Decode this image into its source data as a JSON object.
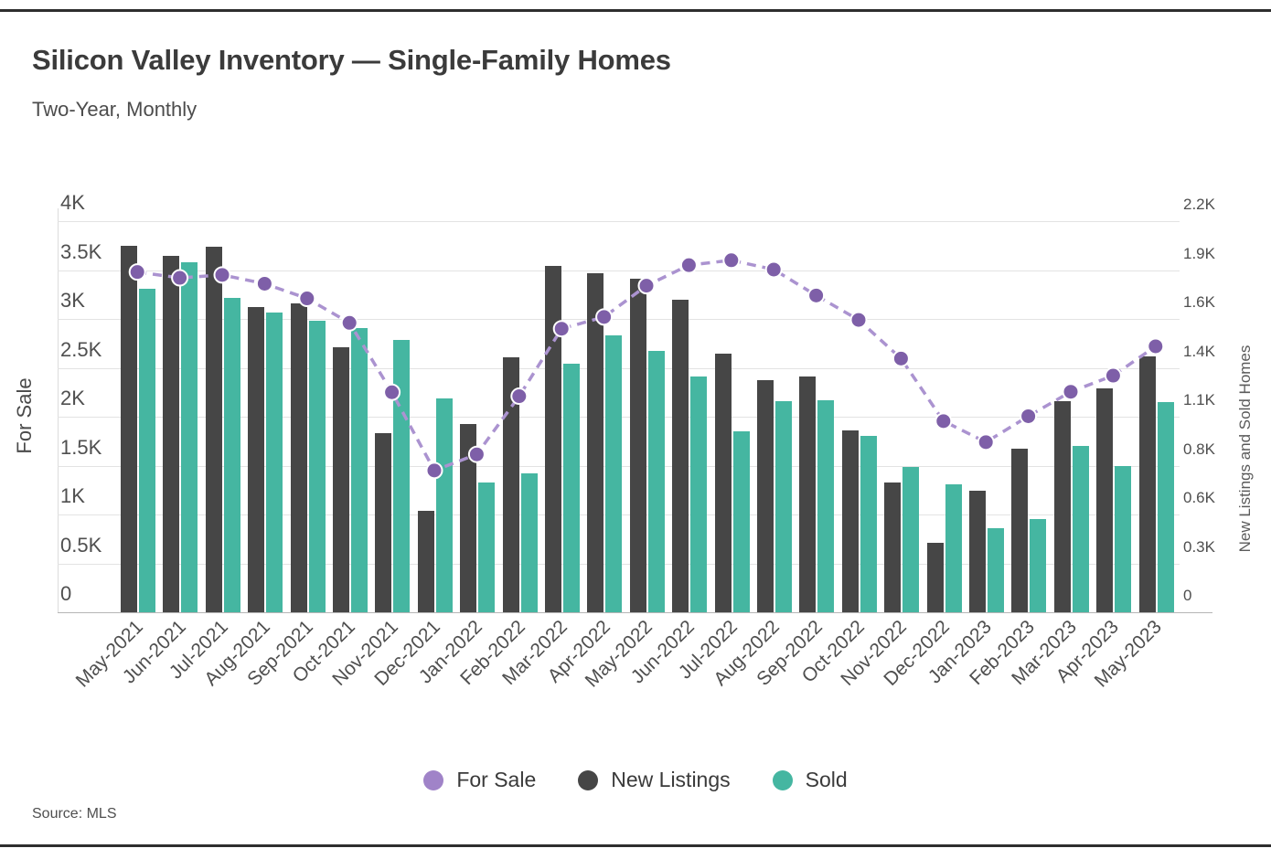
{
  "header": {
    "title": "Silicon Valley Inventory — Single-Family Homes",
    "subtitle": "Two-Year, Monthly"
  },
  "footer": {
    "source": "Source: MLS"
  },
  "colors": {
    "bar_new_listings": "#464646",
    "bar_sold": "#45b6a1",
    "line_for_sale": "#ab93d0",
    "marker_for_sale": "#7e5fa8",
    "legend_for_sale": "#a083c8",
    "gridline": "#e3e3e3",
    "axis_line": "#b5b5b5"
  },
  "chart_data": {
    "type": "bar",
    "subtype": "combo-bar-line-dual-axis",
    "title": "Silicon Valley Inventory — Single-Family Homes",
    "subtitle": "Two-Year, Monthly",
    "grid": true,
    "legend_position": "bottom",
    "categories": [
      "May-2021",
      "Jun-2021",
      "Jul-2021",
      "Aug-2021",
      "Sep-2021",
      "Oct-2021",
      "Nov-2021",
      "Dec-2021",
      "Jan-2022",
      "Feb-2022",
      "Mar-2022",
      "Apr-2022",
      "May-2022",
      "Jun-2022",
      "Jul-2022",
      "Aug-2022",
      "Sep-2022",
      "Oct-2022",
      "Nov-2022",
      "Dec-2022",
      "Jan-2023",
      "Feb-2023",
      "Mar-2023",
      "Apr-2023",
      "May-2023"
    ],
    "series": [
      {
        "name": "For Sale",
        "type": "line",
        "axis": "left",
        "style": "dashed-with-markers",
        "color": "#a083c8",
        "line_color": "#ab93d0",
        "marker_color": "#7e5fa8",
        "values": [
          3480,
          3420,
          3450,
          3360,
          3210,
          2960,
          2250,
          1450,
          1615,
          2210,
          2900,
          3020,
          3340,
          3550,
          3600,
          3505,
          3240,
          2990,
          2595,
          1955,
          1740,
          2005,
          2255,
          2420,
          2720
        ]
      },
      {
        "name": "New Listings",
        "type": "bar",
        "axis": "right",
        "color": "#464646",
        "values": [
          2060,
          2005,
          2055,
          1715,
          1735,
          1490,
          1005,
          570,
          1060,
          1435,
          1950,
          1905,
          1875,
          1760,
          1455,
          1305,
          1325,
          1025,
          730,
          390,
          685,
          920,
          1185,
          1260,
          1440
        ]
      },
      {
        "name": "Sold",
        "type": "bar",
        "axis": "right",
        "color": "#45b6a1",
        "values": [
          1820,
          1970,
          1770,
          1685,
          1640,
          1600,
          1530,
          1205,
          730,
          780,
          1400,
          1560,
          1470,
          1325,
          1020,
          1185,
          1190,
          990,
          815,
          720,
          475,
          525,
          935,
          820,
          1180
        ]
      }
    ],
    "left_axis": {
      "title": "For Sale",
      "min": 0,
      "max": 4000,
      "tick_values": [
        4000,
        3500,
        3000,
        2500,
        2000,
        1500,
        1000,
        500,
        0
      ],
      "tick_labels": [
        "4K",
        "3.5K",
        "3K",
        "2.5K",
        "2K",
        "1.5K",
        "1K",
        "0.5K",
        "0"
      ]
    },
    "right_axis": {
      "title": "New Listings and Sold Homes",
      "min": 0,
      "max": 2200,
      "tick_values": [
        2200,
        1925,
        1650,
        1375,
        1100,
        825,
        550,
        275,
        0
      ],
      "tick_labels": [
        "2.2K",
        "1.9K",
        "1.6K",
        "1.4K",
        "1.1K",
        "0.8K",
        "0.6K",
        "0.3K",
        "0"
      ]
    },
    "legend": [
      "For Sale",
      "New Listings",
      "Sold"
    ]
  }
}
